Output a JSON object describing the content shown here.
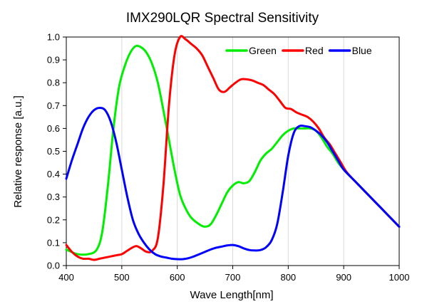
{
  "chart_data": {
    "type": "line",
    "title": "IMX290LQR Spectral Sensitivity",
    "xlabel": "Wave Length[nm]",
    "ylabel": "Relative response [a.u.]",
    "xlim": [
      400,
      1000
    ],
    "ylim": [
      0.0,
      1.0
    ],
    "x_ticks": [
      "400",
      "500",
      "600",
      "700",
      "800",
      "900",
      "1000"
    ],
    "y_ticks": [
      "0.0",
      "0.1",
      "0.2",
      "0.3",
      "0.4",
      "0.5",
      "0.6",
      "0.7",
      "0.8",
      "0.9",
      "1.0"
    ],
    "grid": {
      "horizontal": false,
      "vertical": true
    },
    "legend_position": "top-right",
    "series": [
      {
        "name": "Green",
        "color": "#00ee00",
        "points": [
          [
            400,
            0.07
          ],
          [
            420,
            0.05
          ],
          [
            440,
            0.05
          ],
          [
            455,
            0.07
          ],
          [
            465,
            0.15
          ],
          [
            475,
            0.35
          ],
          [
            485,
            0.6
          ],
          [
            495,
            0.78
          ],
          [
            505,
            0.87
          ],
          [
            515,
            0.93
          ],
          [
            525,
            0.96
          ],
          [
            535,
            0.955
          ],
          [
            545,
            0.93
          ],
          [
            555,
            0.88
          ],
          [
            565,
            0.8
          ],
          [
            575,
            0.68
          ],
          [
            585,
            0.55
          ],
          [
            595,
            0.42
          ],
          [
            605,
            0.31
          ],
          [
            615,
            0.25
          ],
          [
            625,
            0.21
          ],
          [
            640,
            0.18
          ],
          [
            650,
            0.17
          ],
          [
            660,
            0.18
          ],
          [
            670,
            0.22
          ],
          [
            680,
            0.27
          ],
          [
            690,
            0.32
          ],
          [
            700,
            0.35
          ],
          [
            710,
            0.365
          ],
          [
            720,
            0.36
          ],
          [
            730,
            0.37
          ],
          [
            740,
            0.41
          ],
          [
            750,
            0.46
          ],
          [
            760,
            0.49
          ],
          [
            770,
            0.51
          ],
          [
            780,
            0.54
          ],
          [
            790,
            0.57
          ],
          [
            800,
            0.59
          ],
          [
            810,
            0.6
          ],
          [
            820,
            0.6
          ],
          [
            830,
            0.6
          ],
          [
            840,
            0.6
          ],
          [
            850,
            0.59
          ],
          [
            860,
            0.56
          ],
          [
            870,
            0.52
          ],
          [
            880,
            0.49
          ],
          [
            890,
            0.45
          ],
          [
            900,
            0.42
          ],
          [
            920,
            0.37
          ],
          [
            940,
            0.32
          ],
          [
            960,
            0.27
          ],
          [
            980,
            0.22
          ],
          [
            1000,
            0.17
          ]
        ]
      },
      {
        "name": "Red",
        "color": "#ff0000",
        "points": [
          [
            400,
            0.09
          ],
          [
            410,
            0.06
          ],
          [
            420,
            0.04
          ],
          [
            430,
            0.03
          ],
          [
            440,
            0.03
          ],
          [
            450,
            0.025
          ],
          [
            460,
            0.03
          ],
          [
            470,
            0.035
          ],
          [
            480,
            0.04
          ],
          [
            490,
            0.045
          ],
          [
            500,
            0.05
          ],
          [
            510,
            0.065
          ],
          [
            520,
            0.08
          ],
          [
            527,
            0.085
          ],
          [
            535,
            0.075
          ],
          [
            545,
            0.06
          ],
          [
            555,
            0.065
          ],
          [
            565,
            0.12
          ],
          [
            575,
            0.35
          ],
          [
            585,
            0.7
          ],
          [
            595,
            0.92
          ],
          [
            605,
            1.0
          ],
          [
            615,
            0.99
          ],
          [
            625,
            0.97
          ],
          [
            635,
            0.95
          ],
          [
            645,
            0.92
          ],
          [
            655,
            0.87
          ],
          [
            665,
            0.82
          ],
          [
            675,
            0.77
          ],
          [
            685,
            0.76
          ],
          [
            695,
            0.78
          ],
          [
            705,
            0.8
          ],
          [
            715,
            0.815
          ],
          [
            725,
            0.815
          ],
          [
            735,
            0.81
          ],
          [
            745,
            0.8
          ],
          [
            755,
            0.79
          ],
          [
            765,
            0.77
          ],
          [
            775,
            0.75
          ],
          [
            785,
            0.72
          ],
          [
            795,
            0.69
          ],
          [
            805,
            0.685
          ],
          [
            815,
            0.67
          ],
          [
            825,
            0.66
          ],
          [
            835,
            0.65
          ],
          [
            845,
            0.63
          ],
          [
            855,
            0.6
          ],
          [
            865,
            0.56
          ],
          [
            875,
            0.53
          ],
          [
            885,
            0.49
          ],
          [
            895,
            0.45
          ],
          [
            905,
            0.41
          ],
          [
            920,
            0.37
          ],
          [
            940,
            0.32
          ],
          [
            960,
            0.27
          ],
          [
            980,
            0.22
          ],
          [
            1000,
            0.17
          ]
        ]
      },
      {
        "name": "Blue",
        "color": "#0000ff",
        "points": [
          [
            400,
            0.38
          ],
          [
            410,
            0.46
          ],
          [
            420,
            0.53
          ],
          [
            430,
            0.6
          ],
          [
            440,
            0.65
          ],
          [
            450,
            0.68
          ],
          [
            460,
            0.69
          ],
          [
            470,
            0.68
          ],
          [
            480,
            0.63
          ],
          [
            490,
            0.54
          ],
          [
            500,
            0.42
          ],
          [
            510,
            0.3
          ],
          [
            520,
            0.2
          ],
          [
            530,
            0.14
          ],
          [
            540,
            0.1
          ],
          [
            550,
            0.07
          ],
          [
            560,
            0.05
          ],
          [
            570,
            0.04
          ],
          [
            580,
            0.035
          ],
          [
            590,
            0.03
          ],
          [
            600,
            0.028
          ],
          [
            610,
            0.028
          ],
          [
            620,
            0.032
          ],
          [
            630,
            0.04
          ],
          [
            640,
            0.05
          ],
          [
            650,
            0.06
          ],
          [
            660,
            0.07
          ],
          [
            670,
            0.078
          ],
          [
            680,
            0.083
          ],
          [
            690,
            0.088
          ],
          [
            700,
            0.09
          ],
          [
            710,
            0.085
          ],
          [
            720,
            0.075
          ],
          [
            730,
            0.068
          ],
          [
            740,
            0.066
          ],
          [
            750,
            0.068
          ],
          [
            760,
            0.08
          ],
          [
            770,
            0.11
          ],
          [
            780,
            0.18
          ],
          [
            790,
            0.32
          ],
          [
            800,
            0.48
          ],
          [
            810,
            0.58
          ],
          [
            820,
            0.61
          ],
          [
            830,
            0.61
          ],
          [
            840,
            0.605
          ],
          [
            850,
            0.59
          ],
          [
            860,
            0.57
          ],
          [
            870,
            0.54
          ],
          [
            880,
            0.5
          ],
          [
            890,
            0.46
          ],
          [
            900,
            0.42
          ],
          [
            920,
            0.37
          ],
          [
            940,
            0.32
          ],
          [
            960,
            0.27
          ],
          [
            980,
            0.22
          ],
          [
            1000,
            0.17
          ]
        ]
      }
    ]
  }
}
